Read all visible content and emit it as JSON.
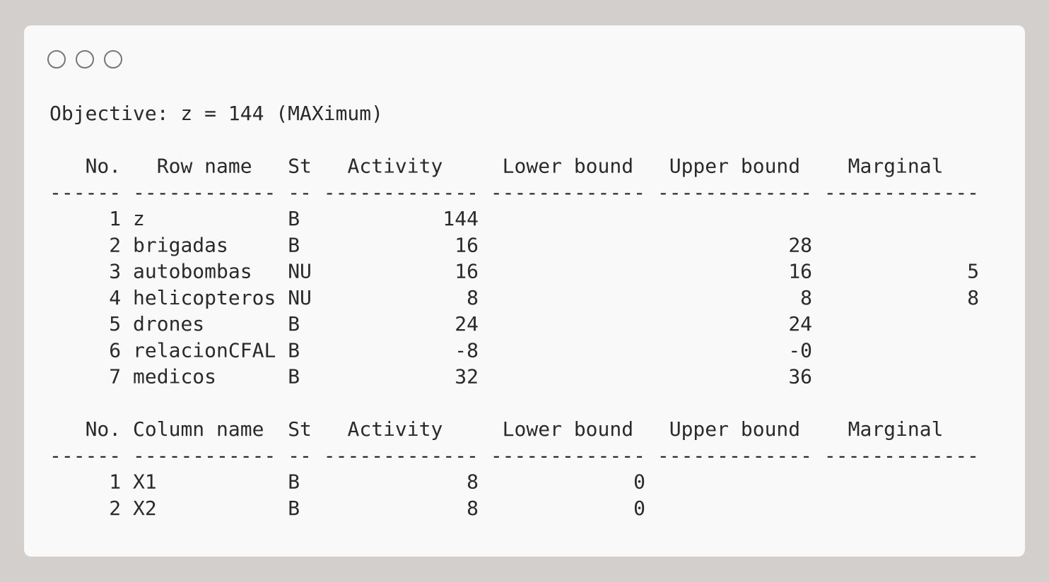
{
  "objective": "Objective:  z = 144 (MAXimum)",
  "tables": [
    {
      "headers": [
        "No.",
        "Row name",
        "St",
        "Activity",
        "Lower bound",
        "Upper bound",
        "Marginal"
      ],
      "separator": [
        "------",
        "------------",
        "--",
        "-------------",
        "-------------",
        "-------------",
        "-------------"
      ],
      "rows": [
        [
          1,
          "z",
          "B",
          144,
          null,
          null,
          null
        ],
        [
          2,
          "brigadas",
          "B",
          16,
          null,
          28,
          null
        ],
        [
          3,
          "autobombas",
          "NU",
          16,
          null,
          16,
          5
        ],
        [
          4,
          "helicopteros",
          "NU",
          8,
          null,
          8,
          8
        ],
        [
          5,
          "drones",
          "B",
          24,
          null,
          24,
          null
        ],
        [
          6,
          "relacionCFAL",
          "B",
          -8,
          null,
          "-0",
          null
        ],
        [
          7,
          "medicos",
          "B",
          32,
          null,
          36,
          null
        ]
      ]
    },
    {
      "headers": [
        "No.",
        "Column name",
        "St",
        "Activity",
        "Lower bound",
        "Upper bound",
        "Marginal"
      ],
      "separator": [
        "------",
        "------------",
        "--",
        "-------------",
        "-------------",
        "-------------",
        "-------------"
      ],
      "rows": [
        [
          1,
          "X1",
          "B",
          8,
          0,
          null,
          null
        ],
        [
          2,
          "X2",
          "B",
          8,
          0,
          null,
          null
        ]
      ]
    }
  ]
}
